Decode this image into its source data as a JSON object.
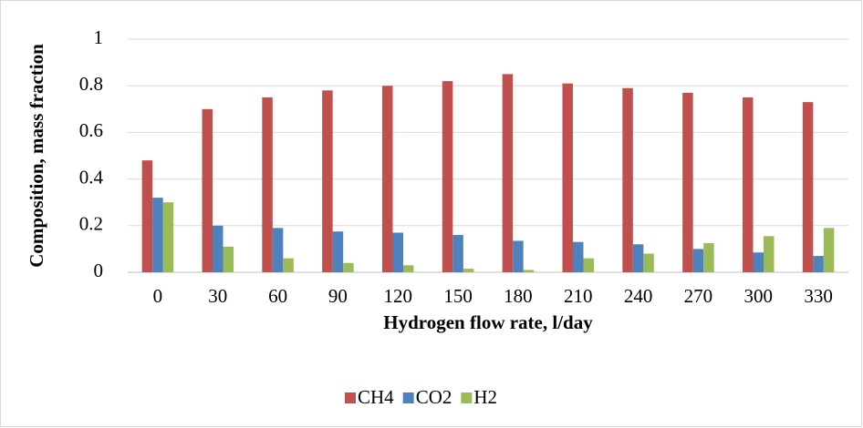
{
  "chart_data": {
    "type": "bar",
    "x_label": "Hydrogen flow rate, l/day",
    "y_label": "Composition, mass fraction",
    "categories": [
      "0",
      "30",
      "60",
      "90",
      "120",
      "150",
      "180",
      "210",
      "240",
      "270",
      "300",
      "330"
    ],
    "series": [
      {
        "name": "CH4",
        "color": "#c0504d",
        "values": [
          0.48,
          0.7,
          0.75,
          0.78,
          0.8,
          0.82,
          0.85,
          0.81,
          0.79,
          0.77,
          0.75,
          0.73
        ]
      },
      {
        "name": "CO2",
        "color": "#4f81bd",
        "values": [
          0.32,
          0.2,
          0.19,
          0.175,
          0.17,
          0.16,
          0.135,
          0.13,
          0.12,
          0.1,
          0.085,
          0.07
        ]
      },
      {
        "name": "H2",
        "color": "#9bbb59",
        "values": [
          0.3,
          0.11,
          0.06,
          0.04,
          0.03,
          0.015,
          0.01,
          0.06,
          0.08,
          0.125,
          0.155,
          0.19
        ]
      }
    ],
    "ylim": [
      0,
      1
    ],
    "yticks": [
      0,
      0.2,
      0.4,
      0.6,
      0.8,
      1
    ],
    "grid": true,
    "legend": "bottom"
  }
}
